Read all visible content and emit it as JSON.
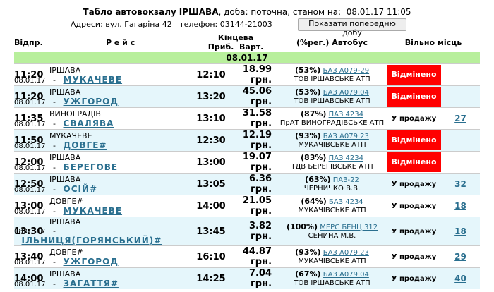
{
  "header": {
    "title": "Табло автовокзалу",
    "station": "ІРШАВА",
    "day_label": ", доба:",
    "day": "поточна",
    "as_of": ", станом на:  08.01.17 11:05",
    "address": "Адреси: вул. Гагаріна 42",
    "phone": "телефон: 03144-21003",
    "button": "Показати попередню добу"
  },
  "table": {
    "columns": {
      "departure": "Відпр.",
      "route": "Р е й с",
      "final": "Кінцева",
      "arrival": "Приб.",
      "price": "Варт.",
      "bus": "(%рег.) Автобус",
      "seats": "Вільно місць"
    },
    "date_row": "08.01.17",
    "route_separator": "-",
    "rows": [
      {
        "time": "11:20",
        "from": "ІРШАВА",
        "date": "08.01.17",
        "to": "МУКАЧЕВЕ",
        "arrival": "12:10",
        "price": "18.99 грн.",
        "load": "(53%)",
        "bus": "БАЗ А079-29",
        "carrier": "ТОВ ІРШАВСЬКЕ АТП",
        "status": "Відмінено",
        "seats": null
      },
      {
        "time": "11:20",
        "from": "ІРШАВА",
        "date": "08.01.17",
        "to": "УЖГОРОД",
        "arrival": "13:20",
        "price": "45.06 грн.",
        "load": "(53%)",
        "bus": "БАЗ А079.04",
        "carrier": "ТОВ ІРШАВСЬКЕ АТП",
        "status": "Відмінено",
        "seats": null
      },
      {
        "time": "11:35",
        "from": "ВИНОГРАДІВ",
        "date": "08.01.17",
        "to": "СВАЛЯВА",
        "arrival": "13:10",
        "price": "31.58 грн.",
        "load": "(87%)",
        "bus": "ПАЗ 4234",
        "carrier": "ПрАТ ВИНОГРАДІВСЬКЕ АТП",
        "status": "У продажу",
        "seats": "27"
      },
      {
        "time": "11:50",
        "from": "МУКАЧЕВЕ",
        "date": "08.01.17",
        "to": "ДОВГЕ#",
        "arrival": "12:30",
        "price": "12.19 грн.",
        "load": "(93%)",
        "bus": "БАЗ А079.23",
        "carrier": "МУКАЧІВСЬКЕ АТП",
        "status": "Відмінено",
        "seats": null
      },
      {
        "time": "12:00",
        "from": "ІРШАВА",
        "date": "08.01.17",
        "to": "БЕРЕГОВЕ",
        "arrival": "13:00",
        "price": "19.07 грн.",
        "load": "(83%)",
        "bus": "ПАЗ 4234",
        "carrier": "ТДВ БЕРЕГІВСЬКЕ АТП",
        "status": "Відмінено",
        "seats": null
      },
      {
        "time": "12:50",
        "from": "ІРШАВА",
        "date": "08.01.17",
        "to": "ОСІЙ#",
        "arrival": "13:05",
        "price": "6.36 грн.",
        "load": "(63%)",
        "bus": "ПАЗ-22",
        "carrier": "ЧЕРНИЧКО В.В.",
        "status": "У продажу",
        "seats": "32"
      },
      {
        "time": "13:00",
        "from": "ДОВГЕ#",
        "date": "08.01.17",
        "to": "МУКАЧЕВЕ",
        "arrival": "14:00",
        "price": "21.05 грн.",
        "load": "(64%)",
        "bus": "БАЗ 4234",
        "carrier": "МУКАЧІВСЬКЕ АТП",
        "status": "У продажу",
        "seats": "18"
      },
      {
        "time": "13:30",
        "from": "ІРШАВА",
        "date": "08.01.17",
        "to": "ІЛЬНИЦЯ(ГОРЯНСЬКИЙ)#",
        "arrival": "13:45",
        "price": "3.82 грн.",
        "load": "(100%)",
        "bus": "МЕРС БЕНЦ 312",
        "carrier": "СЕНИНА М.В.",
        "status": "У продажу",
        "seats": "18"
      },
      {
        "time": "13:40",
        "from": "ДОВГЕ#",
        "date": "08.01.17",
        "to": "УЖГОРОД",
        "arrival": "16:10",
        "price": "44.87 грн.",
        "load": "(93%)",
        "bus": "БАЗ А079.23",
        "carrier": "МУКАЧІВСЬКЕ АТП",
        "status": "У продажу",
        "seats": "29"
      },
      {
        "time": "14:00",
        "from": "ІРШАВА",
        "date": "08.01.17",
        "to": "ЗАГАТТЯ#",
        "arrival": "14:25",
        "price": "7.04 грн.",
        "load": "(67%)",
        "bus": "БАЗ А079.04",
        "carrier": "ТОВ ІРШАВСЬКЕ АТП",
        "status": "У продажу",
        "seats": "40"
      }
    ]
  }
}
